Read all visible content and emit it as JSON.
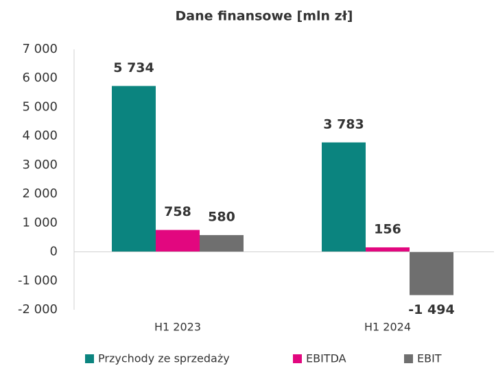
{
  "chart_data": {
    "type": "bar",
    "title": "Dane finansowe [mln zł]",
    "categories": [
      "H1 2023",
      "H1 2024"
    ],
    "series": [
      {
        "name": "Przychody ze sprzedaży",
        "color": "#0b847f",
        "values": [
          5734,
          3783
        ],
        "value_labels": [
          "5 734",
          "3 783"
        ]
      },
      {
        "name": "EBITDA",
        "color": "#e2077f",
        "values": [
          758,
          156
        ],
        "value_labels": [
          "758",
          "156"
        ]
      },
      {
        "name": "EBIT",
        "color": "#6f6f6f",
        "values": [
          580,
          -1494
        ],
        "value_labels": [
          "580",
          "-1 494"
        ]
      }
    ],
    "ylim": [
      -2000,
      7000
    ],
    "yticks": [
      {
        "value": 7000,
        "label": "7 000"
      },
      {
        "value": 6000,
        "label": "6 000"
      },
      {
        "value": 5000,
        "label": "5 000"
      },
      {
        "value": 4000,
        "label": "4 000"
      },
      {
        "value": 3000,
        "label": "3 000"
      },
      {
        "value": 2000,
        "label": "2 000"
      },
      {
        "value": 1000,
        "label": "1 000"
      },
      0,
      {
        "value": -1000,
        "label": "-1 000"
      },
      {
        "value": -2000,
        "label": "-2 000"
      }
    ],
    "grid": false,
    "legend": "bottom"
  }
}
